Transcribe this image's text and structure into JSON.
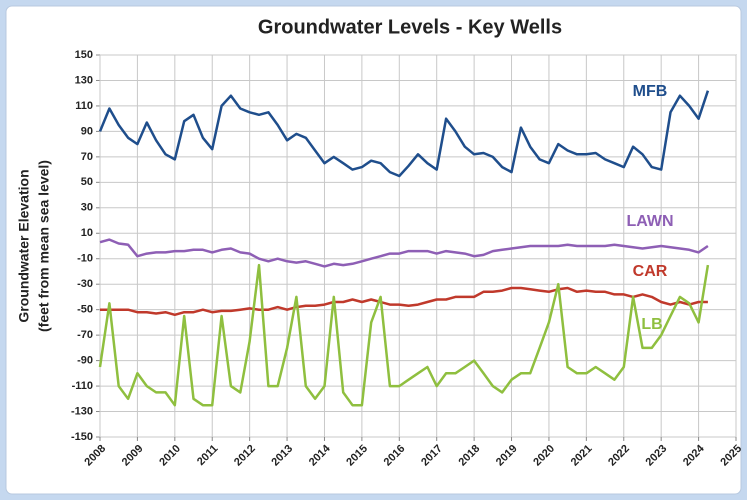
{
  "chart_data": {
    "type": "line",
    "title": "Groundwater Levels - Key Wells",
    "y_label": [
      "Groundwater Elevation",
      "(feet from mean sea level)"
    ],
    "x": [
      2008,
      2008.25,
      2008.5,
      2008.75,
      2009,
      2009.25,
      2009.5,
      2009.75,
      2010,
      2010.25,
      2010.5,
      2010.75,
      2011,
      2011.25,
      2011.5,
      2011.75,
      2012,
      2012.25,
      2012.5,
      2012.75,
      2013,
      2013.25,
      2013.5,
      2013.75,
      2014,
      2014.25,
      2014.5,
      2014.75,
      2015,
      2015.25,
      2015.5,
      2015.75,
      2016,
      2016.25,
      2016.5,
      2016.75,
      2017,
      2017.25,
      2017.5,
      2017.75,
      2018,
      2018.25,
      2018.5,
      2018.75,
      2019,
      2019.25,
      2019.5,
      2019.75,
      2020,
      2020.25,
      2020.5,
      2020.75,
      2021,
      2021.25,
      2021.5,
      2021.75,
      2022,
      2022.25,
      2022.5,
      2022.75,
      2023,
      2023.25,
      2023.5,
      2023.75,
      2024,
      2024.25
    ],
    "series": [
      {
        "name": "MFB",
        "color": "#1f4e8c",
        "values": [
          90,
          108,
          95,
          85,
          80,
          97,
          83,
          72,
          68,
          98,
          103,
          85,
          76,
          110,
          118,
          108,
          105,
          103,
          105,
          95,
          83,
          88,
          85,
          75,
          65,
          70,
          65,
          60,
          62,
          67,
          65,
          58,
          55,
          63,
          72,
          65,
          60,
          100,
          90,
          78,
          72,
          73,
          70,
          62,
          58,
          93,
          78,
          68,
          65,
          80,
          75,
          72,
          72,
          73,
          68,
          65,
          62,
          78,
          72,
          62,
          60,
          105,
          118,
          110,
          100,
          122
        ]
      },
      {
        "name": "LAWN",
        "color": "#8e5fb5",
        "values": [
          3,
          5,
          2,
          1,
          -8,
          -6,
          -5,
          -5,
          -4,
          -4,
          -3,
          -3,
          -5,
          -3,
          -2,
          -5,
          -6,
          -10,
          -12,
          -10,
          -12,
          -13,
          -12,
          -14,
          -16,
          -14,
          -15,
          -14,
          -12,
          -10,
          -8,
          -6,
          -6,
          -4,
          -4,
          -4,
          -6,
          -4,
          -5,
          -6,
          -8,
          -7,
          -4,
          -3,
          -2,
          -1,
          0,
          0,
          0,
          0,
          1,
          0,
          0,
          0,
          0,
          1,
          0,
          -1,
          -2,
          -1,
          0,
          -1,
          -2,
          -3,
          -5,
          0
        ]
      },
      {
        "name": "CAR",
        "color": "#c0392b",
        "values": [
          -50,
          -50,
          -50,
          -50,
          -52,
          -52,
          -53,
          -52,
          -54,
          -52,
          -52,
          -50,
          -52,
          -51,
          -51,
          -50,
          -49,
          -50,
          -50,
          -48,
          -50,
          -48,
          -47,
          -47,
          -46,
          -44,
          -44,
          -42,
          -44,
          -42,
          -44,
          -46,
          -46,
          -47,
          -46,
          -44,
          -42,
          -42,
          -40,
          -40,
          -40,
          -36,
          -36,
          -35,
          -33,
          -33,
          -34,
          -35,
          -36,
          -34,
          -33,
          -36,
          -35,
          -36,
          -36,
          -38,
          -38,
          -40,
          -38,
          -40,
          -44,
          -46,
          -44,
          -46,
          -44,
          -44
        ]
      },
      {
        "name": "LB",
        "color": "#8fbf3f",
        "values": [
          -95,
          -45,
          -110,
          -120,
          -100,
          -110,
          -115,
          -115,
          -125,
          -55,
          -120,
          -125,
          -125,
          -55,
          -110,
          -115,
          -75,
          -15,
          -110,
          -110,
          -80,
          -40,
          -110,
          -120,
          -110,
          -40,
          -115,
          -125,
          -125,
          -60,
          -40,
          -110,
          -110,
          -105,
          -100,
          -95,
          -110,
          -100,
          -100,
          -95,
          -90,
          -100,
          -110,
          -115,
          -105,
          -100,
          -100,
          -80,
          -60,
          -30,
          -95,
          -100,
          -100,
          -95,
          -100,
          -105,
          -95,
          -40,
          -80,
          -80,
          -70,
          -55,
          -40,
          -45,
          -60,
          -15
        ]
      }
    ],
    "xlim": [
      2008,
      2025
    ],
    "xticks": [
      2008,
      2009,
      2010,
      2011,
      2012,
      2013,
      2014,
      2015,
      2016,
      2017,
      2018,
      2019,
      2020,
      2021,
      2022,
      2023,
      2024,
      2025
    ],
    "ylim": [
      -150,
      150
    ],
    "yticks": [
      150,
      130,
      110,
      90,
      70,
      50,
      30,
      10,
      -10,
      -30,
      -50,
      -70,
      -90,
      -110,
      -130,
      -150
    ],
    "grid": true
  }
}
